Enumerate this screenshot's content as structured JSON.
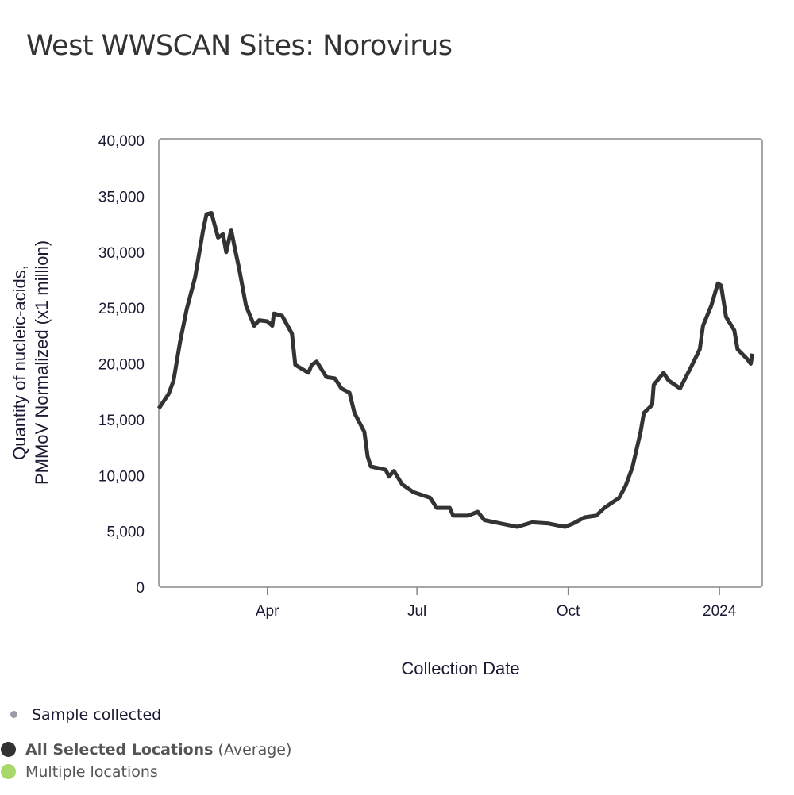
{
  "title": "West WWSCAN Sites: Norovirus",
  "chart_data": {
    "type": "line",
    "title": "West WWSCAN Sites: Norovirus",
    "xlabel": "Collection Date",
    "ylabel_lines": [
      "Quantity of nucleic-acids,",
      "PMMoV Normalized (x1 million)"
    ],
    "xlim": [
      "2023-01-25",
      "2024-01-27"
    ],
    "ylim": [
      0,
      40000
    ],
    "grid": false,
    "y_ticks": [
      0,
      5000,
      10000,
      15000,
      20000,
      25000,
      30000,
      35000,
      40000
    ],
    "y_tick_labels": [
      "0",
      "5,000",
      "10,000",
      "15,000",
      "20,000",
      "25,000",
      "30,000",
      "35,000",
      "40,000"
    ],
    "x_ticks": [
      {
        "date": "2023-04-01",
        "label": "Apr"
      },
      {
        "date": "2023-07-01",
        "label": "Jul"
      },
      {
        "date": "2023-10-01",
        "label": "Oct"
      },
      {
        "date": "2024-01-01",
        "label": "2024"
      }
    ],
    "series": [
      {
        "name": "All Selected Locations (Average)",
        "color": "#333333",
        "points": [
          [
            "2023-01-25",
            16000
          ],
          [
            "2023-01-31",
            17300
          ],
          [
            "2023-02-03",
            18500
          ],
          [
            "2023-02-07",
            22000
          ],
          [
            "2023-02-11",
            24900
          ],
          [
            "2023-02-16",
            27700
          ],
          [
            "2023-02-21",
            32000
          ],
          [
            "2023-02-23",
            33400
          ],
          [
            "2023-02-26",
            33500
          ],
          [
            "2023-03-02",
            31300
          ],
          [
            "2023-03-05",
            31600
          ],
          [
            "2023-03-07",
            30000
          ],
          [
            "2023-03-10",
            32000
          ],
          [
            "2023-03-12",
            30500
          ],
          [
            "2023-03-15",
            28400
          ],
          [
            "2023-03-19",
            25200
          ],
          [
            "2023-03-24",
            23400
          ],
          [
            "2023-03-27",
            23900
          ],
          [
            "2023-04-01",
            23800
          ],
          [
            "2023-04-04",
            23400
          ],
          [
            "2023-04-05",
            24500
          ],
          [
            "2023-04-10",
            24300
          ],
          [
            "2023-04-16",
            22700
          ],
          [
            "2023-04-18",
            19900
          ],
          [
            "2023-04-26",
            19200
          ],
          [
            "2023-04-28",
            19900
          ],
          [
            "2023-05-01",
            20200
          ],
          [
            "2023-05-07",
            18800
          ],
          [
            "2023-05-12",
            18700
          ],
          [
            "2023-05-16",
            17800
          ],
          [
            "2023-05-21",
            17400
          ],
          [
            "2023-05-24",
            15600
          ],
          [
            "2023-05-30",
            13900
          ],
          [
            "2023-06-01",
            11700
          ],
          [
            "2023-06-03",
            10800
          ],
          [
            "2023-06-12",
            10500
          ],
          [
            "2023-06-14",
            9900
          ],
          [
            "2023-06-17",
            10400
          ],
          [
            "2023-06-22",
            9200
          ],
          [
            "2023-06-29",
            8500
          ],
          [
            "2023-07-09",
            8000
          ],
          [
            "2023-07-13",
            7100
          ],
          [
            "2023-07-21",
            7100
          ],
          [
            "2023-07-23",
            6400
          ],
          [
            "2023-08-01",
            6400
          ],
          [
            "2023-08-07",
            6750
          ],
          [
            "2023-08-11",
            6000
          ],
          [
            "2023-08-21",
            5700
          ],
          [
            "2023-08-31",
            5400
          ],
          [
            "2023-09-09",
            5800
          ],
          [
            "2023-09-19",
            5700
          ],
          [
            "2023-09-29",
            5400
          ],
          [
            "2023-10-04",
            5700
          ],
          [
            "2023-10-11",
            6250
          ],
          [
            "2023-10-18",
            6400
          ],
          [
            "2023-10-23",
            7100
          ],
          [
            "2023-11-01",
            8000
          ],
          [
            "2023-11-05",
            9100
          ],
          [
            "2023-11-09",
            10700
          ],
          [
            "2023-11-14",
            13900
          ],
          [
            "2023-11-16",
            15600
          ],
          [
            "2023-11-21",
            16300
          ],
          [
            "2023-11-22",
            18100
          ],
          [
            "2023-11-28",
            19200
          ],
          [
            "2023-12-01",
            18500
          ],
          [
            "2023-12-08",
            17800
          ],
          [
            "2023-12-15",
            19800
          ],
          [
            "2023-12-20",
            21300
          ],
          [
            "2023-12-22",
            23400
          ],
          [
            "2023-12-27",
            25200
          ],
          [
            "2023-12-31",
            27200
          ],
          [
            "2024-01-02",
            27000
          ],
          [
            "2024-01-05",
            24200
          ],
          [
            "2024-01-10",
            23000
          ],
          [
            "2024-01-12",
            21300
          ],
          [
            "2024-01-18",
            20400
          ],
          [
            "2024-01-20",
            20000
          ],
          [
            "2024-01-21",
            20900
          ]
        ]
      }
    ]
  },
  "legend": {
    "sample_collected": {
      "label": "Sample collected",
      "color": "#9a9ca8"
    },
    "average": {
      "label_bold": "All Selected Locations",
      "label_suffix": "(Average)",
      "color": "#333333"
    },
    "multiple": {
      "label": "Multiple locations",
      "color": "#a8d86a"
    }
  }
}
